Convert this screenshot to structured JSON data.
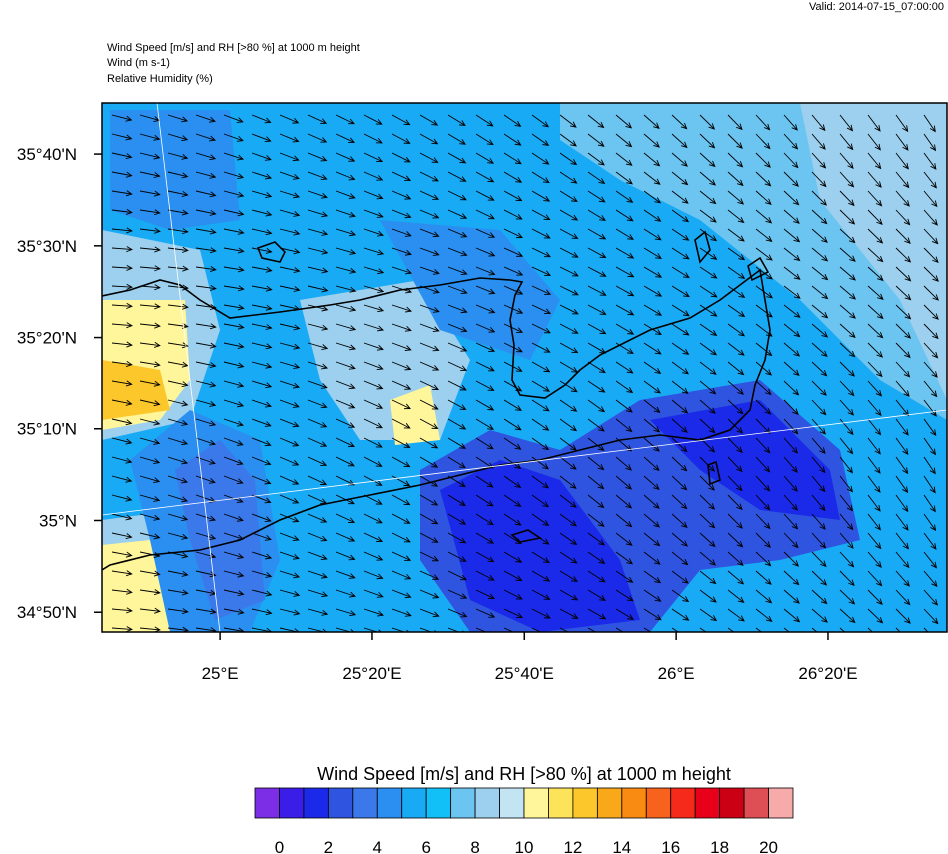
{
  "header": {
    "valid": "Valid: 2014-07-15_07:00:00",
    "lines": [
      "Wind Speed [m/s] and RH [>80 %] at 1000 m height",
      "Wind   (m s-1)",
      "Relative Humidity   (%)"
    ]
  },
  "map": {
    "xlim": [
      24.741,
      26.594
    ],
    "ylim": [
      34.797,
      35.76
    ],
    "xticks": [
      {
        "value": 25,
        "label": "25°E"
      },
      {
        "value": 25.333,
        "label": "25°20'E"
      },
      {
        "value": 25.667,
        "label": "25°40'E"
      },
      {
        "value": 26,
        "label": "26°E"
      },
      {
        "value": 26.333,
        "label": "26°20'E"
      }
    ],
    "yticks": [
      {
        "value": 34.833,
        "label": "34°50'N"
      },
      {
        "value": 35,
        "label": "35°N"
      },
      {
        "value": 35.167,
        "label": "35°10'N"
      },
      {
        "value": 35.333,
        "label": "35°20'N"
      },
      {
        "value": 35.5,
        "label": "35°30'N"
      },
      {
        "value": 35.667,
        "label": "35°40'N"
      }
    ]
  },
  "colorbar": {
    "title": "Wind Speed [m/s] and RH [>80 %] at 1000 m height",
    "colors": [
      "#7b2ee6",
      "#3a1ee8",
      "#1a2ae8",
      "#2f55e0",
      "#3b78ea",
      "#2a8ff0",
      "#19aaf5",
      "#12c0f8",
      "#6cc4f0",
      "#9cd0ee",
      "#c3e4f3",
      "#fff59a",
      "#fde35a",
      "#fbc72a",
      "#f9a81a",
      "#f98a12",
      "#f7621c",
      "#f52a1a",
      "#e8001a",
      "#cc0014",
      "#dd4f55",
      "#f6aaaa"
    ],
    "ticks": [
      0,
      2,
      4,
      6,
      8,
      10,
      12,
      14,
      16,
      18,
      20
    ]
  }
}
